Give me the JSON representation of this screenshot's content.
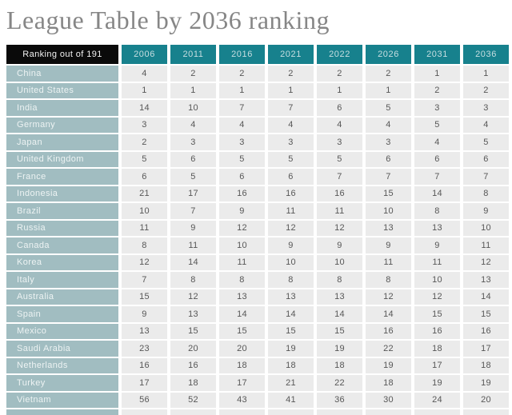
{
  "page": {
    "title": "League Table by 2036 ranking"
  },
  "colors": {
    "title_text": "#868686",
    "header_label_bg": "#0a0a0a",
    "header_label_text": "#f2f2f2",
    "header_year_bg": "#17818d",
    "header_year_text": "#c7dee1",
    "row_label_bg": "#a1bdc1",
    "row_label_text": "#edf3f3",
    "cell_bg": "#ebebeb",
    "cell_text": "#575757"
  },
  "chart_data": {
    "type": "table",
    "title": "League Table by 2036 ranking",
    "corner_header": "Ranking out of 191",
    "columns": [
      "2006",
      "2011",
      "2016",
      "2021",
      "2022",
      "2026",
      "2031",
      "2036"
    ],
    "rows": [
      {
        "country": "China",
        "values": [
          4,
          2,
          2,
          2,
          2,
          2,
          1,
          1
        ]
      },
      {
        "country": "United States",
        "values": [
          1,
          1,
          1,
          1,
          1,
          1,
          2,
          2
        ]
      },
      {
        "country": "India",
        "values": [
          14,
          10,
          7,
          7,
          6,
          5,
          3,
          3
        ]
      },
      {
        "country": "Germany",
        "values": [
          3,
          4,
          4,
          4,
          4,
          4,
          5,
          4
        ]
      },
      {
        "country": "Japan",
        "values": [
          2,
          3,
          3,
          3,
          3,
          3,
          4,
          5
        ]
      },
      {
        "country": "United Kingdom",
        "values": [
          5,
          6,
          5,
          5,
          5,
          6,
          6,
          6
        ]
      },
      {
        "country": "France",
        "values": [
          6,
          5,
          6,
          6,
          7,
          7,
          7,
          7
        ]
      },
      {
        "country": "Indonesia",
        "values": [
          21,
          17,
          16,
          16,
          16,
          15,
          14,
          8
        ]
      },
      {
        "country": "Brazil",
        "values": [
          10,
          7,
          9,
          11,
          11,
          10,
          8,
          9
        ]
      },
      {
        "country": "Russia",
        "values": [
          11,
          9,
          12,
          12,
          12,
          13,
          13,
          10
        ]
      },
      {
        "country": "Canada",
        "values": [
          8,
          11,
          10,
          9,
          9,
          9,
          9,
          11
        ]
      },
      {
        "country": "Korea",
        "values": [
          12,
          14,
          11,
          10,
          10,
          11,
          11,
          12
        ]
      },
      {
        "country": "Italy",
        "values": [
          7,
          8,
          8,
          8,
          8,
          8,
          10,
          13
        ]
      },
      {
        "country": "Australia",
        "values": [
          15,
          12,
          13,
          13,
          13,
          12,
          12,
          14
        ]
      },
      {
        "country": "Spain",
        "values": [
          9,
          13,
          14,
          14,
          14,
          14,
          15,
          15
        ]
      },
      {
        "country": "Mexico",
        "values": [
          13,
          15,
          15,
          15,
          15,
          16,
          16,
          16
        ]
      },
      {
        "country": "Saudi Arabia",
        "values": [
          23,
          20,
          20,
          19,
          19,
          22,
          18,
          17
        ]
      },
      {
        "country": "Netherlands",
        "values": [
          16,
          16,
          18,
          18,
          18,
          19,
          17,
          18
        ]
      },
      {
        "country": "Turkey",
        "values": [
          17,
          18,
          17,
          21,
          22,
          18,
          19,
          19
        ]
      },
      {
        "country": "Vietnam",
        "values": [
          56,
          52,
          43,
          41,
          36,
          30,
          24,
          20
        ]
      }
    ],
    "partial_next_row": true,
    "layout": {
      "grid": false,
      "column_count": 9,
      "visible_row_count": 20
    }
  }
}
